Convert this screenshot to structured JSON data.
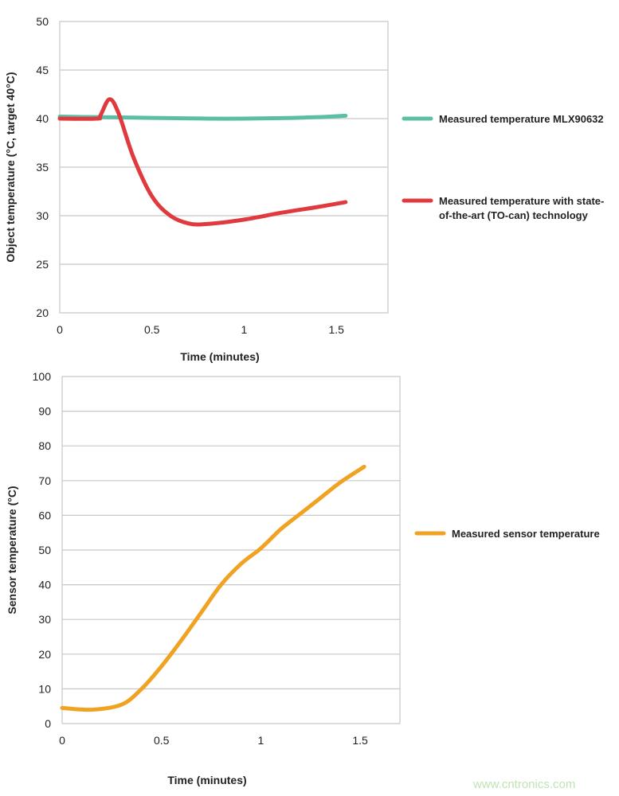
{
  "chart_data": [
    {
      "type": "line",
      "xlabel": "Time (minutes)",
      "ylabel": "Object temperature (°C, target 40°C)",
      "xlim": [
        0,
        1.78
      ],
      "ylim": [
        20,
        50
      ],
      "xticks": [
        "0",
        "0.5",
        "1",
        "1.5"
      ],
      "yticks": [
        "20",
        "25",
        "30",
        "35",
        "40",
        "45",
        "50"
      ],
      "grid": "horizontal",
      "legend_position": "right",
      "series": [
        {
          "name": "Measured temperature MLX90632",
          "color": "#5bbfa6",
          "x": [
            0,
            0.2,
            0.4,
            0.6,
            0.8,
            1.0,
            1.2,
            1.4,
            1.55
          ],
          "y": [
            40.2,
            40.15,
            40.1,
            40.05,
            40.0,
            40.0,
            40.05,
            40.15,
            40.3
          ]
        },
        {
          "name": "Measured temperature with state-of-the-art (TO-can) technology",
          "color": "#e0393e",
          "x": [
            0,
            0.2,
            0.22,
            0.27,
            0.32,
            0.4,
            0.5,
            0.6,
            0.7,
            0.8,
            1.0,
            1.2,
            1.4,
            1.55
          ],
          "y": [
            40,
            40,
            40.3,
            42,
            40.5,
            36,
            32,
            30,
            29.2,
            29.15,
            29.6,
            30.3,
            30.9,
            31.4
          ]
        }
      ]
    },
    {
      "type": "line",
      "xlabel": "Time (minutes)",
      "ylabel": "Sensor temperature (°C)",
      "xlim": [
        0,
        1.7
      ],
      "ylim": [
        0,
        100
      ],
      "xticks": [
        "0",
        "0.5",
        "1",
        "1.5"
      ],
      "yticks": [
        "0",
        "10",
        "20",
        "30",
        "40",
        "50",
        "60",
        "70",
        "80",
        "90",
        "100"
      ],
      "grid": "horizontal",
      "legend_position": "right",
      "series": [
        {
          "name": "Measured sensor temperature",
          "color": "#f0a323",
          "x": [
            0,
            0.15,
            0.3,
            0.4,
            0.5,
            0.6,
            0.7,
            0.8,
            0.9,
            1.0,
            1.1,
            1.2,
            1.3,
            1.4,
            1.52
          ],
          "y": [
            4.5,
            4,
            5.5,
            10,
            16.5,
            24,
            32,
            40,
            46,
            50.5,
            56,
            60.5,
            65,
            69.5,
            74
          ]
        }
      ]
    }
  ],
  "watermark": "www.cntronics.com"
}
